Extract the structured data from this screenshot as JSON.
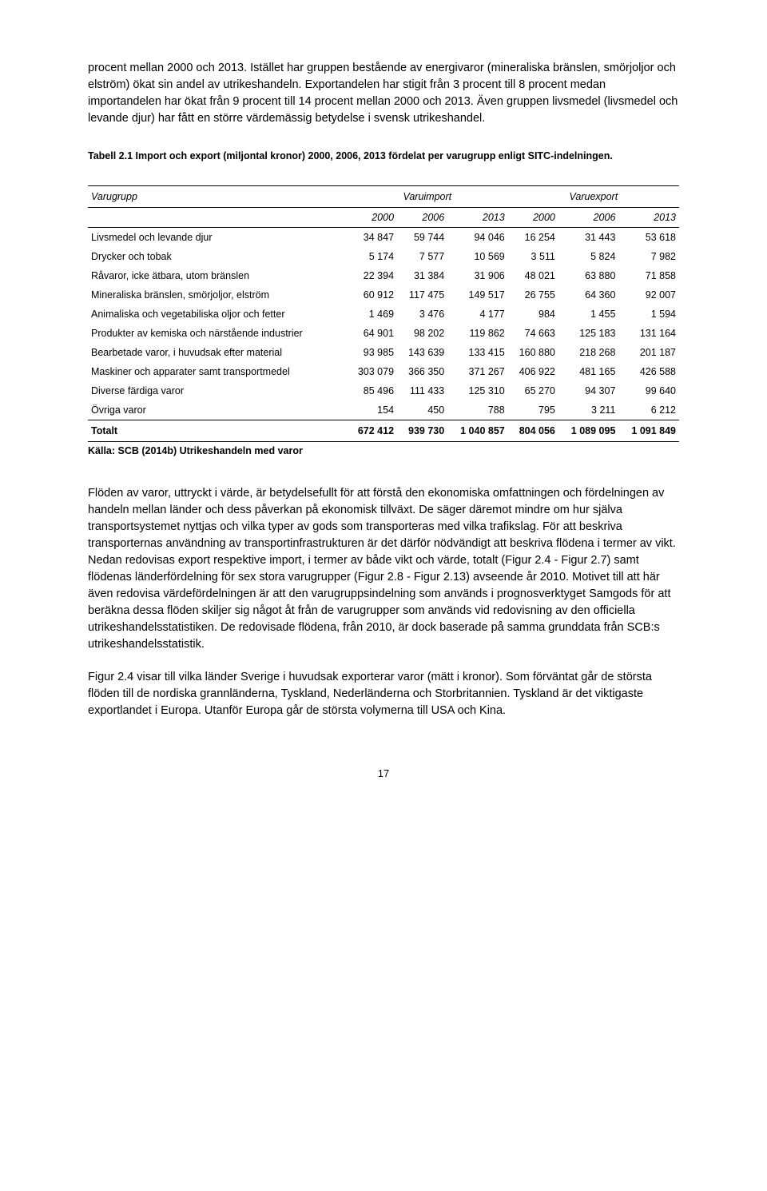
{
  "para1": "procent mellan 2000 och 2013. Istället har gruppen bestående av energivaror (mineraliska bränslen, smörjoljor och elström) ökat sin andel av utrikeshandeln. Exportandelen har stigit från 3 procent till 8 procent medan importandelen har ökat från 9 procent till 14 procent mellan 2000 och 2013. Även gruppen livsmedel (livsmedel och levande djur) har fått en större värdemässig betydelse i svensk utrikeshandel.",
  "table_caption": "Tabell 2.1 Import och export (miljontal kronor) 2000, 2006, 2013 fördelat per varugrupp enligt SITC-indelningen.",
  "table": {
    "head_group_label": "Varugrupp",
    "head_import": "Varuimport",
    "head_export": "Varuexport",
    "years": [
      "2000",
      "2006",
      "2013",
      "2000",
      "2006",
      "2013"
    ],
    "rows": [
      {
        "label": "Livsmedel och levande djur",
        "vals": [
          "34 847",
          "59 744",
          "94 046",
          "16 254",
          "31 443",
          "53 618"
        ]
      },
      {
        "label": "Drycker och tobak",
        "vals": [
          "5 174",
          "7 577",
          "10 569",
          "3 511",
          "5 824",
          "7 982"
        ]
      },
      {
        "label": "Råvaror, icke ätbara, utom bränslen",
        "vals": [
          "22 394",
          "31 384",
          "31 906",
          "48 021",
          "63 880",
          "71 858"
        ]
      },
      {
        "label": "Mineraliska bränslen, smörjoljor, elström",
        "vals": [
          "60 912",
          "117 475",
          "149 517",
          "26 755",
          "64 360",
          "92 007"
        ]
      },
      {
        "label": "Animaliska och vegetabiliska oljor och fetter",
        "vals": [
          "1 469",
          "3 476",
          "4 177",
          "984",
          "1 455",
          "1 594"
        ]
      },
      {
        "label": "Produkter av kemiska och närstående industrier",
        "vals": [
          "64 901",
          "98 202",
          "119 862",
          "74 663",
          "125 183",
          "131 164"
        ]
      },
      {
        "label": "Bearbetade varor, i huvudsak efter material",
        "vals": [
          "93 985",
          "143 639",
          "133 415",
          "160 880",
          "218 268",
          "201 187"
        ]
      },
      {
        "label": "Maskiner och apparater samt transportmedel",
        "vals": [
          "303 079",
          "366 350",
          "371 267",
          "406 922",
          "481 165",
          "426 588"
        ]
      },
      {
        "label": "Diverse färdiga varor",
        "vals": [
          "85 496",
          "111 433",
          "125 310",
          "65 270",
          "94 307",
          "99 640"
        ]
      },
      {
        "label": "Övriga varor",
        "vals": [
          "154",
          "450",
          "788",
          "795",
          "3 211",
          "6 212"
        ]
      }
    ],
    "total": {
      "label": "Totalt",
      "vals": [
        "672 412",
        "939 730",
        "1 040 857",
        "804 056",
        "1 089 095",
        "1 091 849"
      ]
    }
  },
  "source": "Källa: SCB (2014b) Utrikeshandeln med varor",
  "para2": "Flöden av varor, uttryckt i värde, är betydelsefullt för att förstå den ekonomiska omfattningen och fördelningen av handeln mellan länder och dess påverkan på ekonomisk tillväxt. De säger däremot mindre om hur själva transportsystemet nyttjas och vilka typer av gods som transporteras med vilka trafikslag. För att beskriva transporternas användning av transportinfrastrukturen är det därför nödvändigt att beskriva flödena i termer av vikt. Nedan redovisas export respektive import, i termer av både vikt och värde, totalt (Figur 2.4 - Figur 2.7) samt flödenas länderfördelning för sex stora varugrupper (Figur 2.8 - Figur 2.13) avseende år 2010. Motivet till att här även redovisa värdefördelningen är att den varugruppsindelning som används i prognosverktyget Samgods för att beräkna dessa flöden skiljer sig något åt från de varugrupper som används vid redovisning av den officiella utrikeshandelsstatistiken. De redovisade flödena, från 2010, är dock baserade på samma grunddata från SCB:s utrikeshandelsstatistik.",
  "para3": "Figur 2.4 visar till vilka länder Sverige i huvudsak exporterar varor (mätt i kronor). Som förväntat går de största flöden till de nordiska grannländerna, Tyskland, Nederländerna och Storbritannien. Tyskland är det viktigaste exportlandet i Europa. Utanför Europa går de största volymerna till USA och Kina.",
  "page_number": "17"
}
